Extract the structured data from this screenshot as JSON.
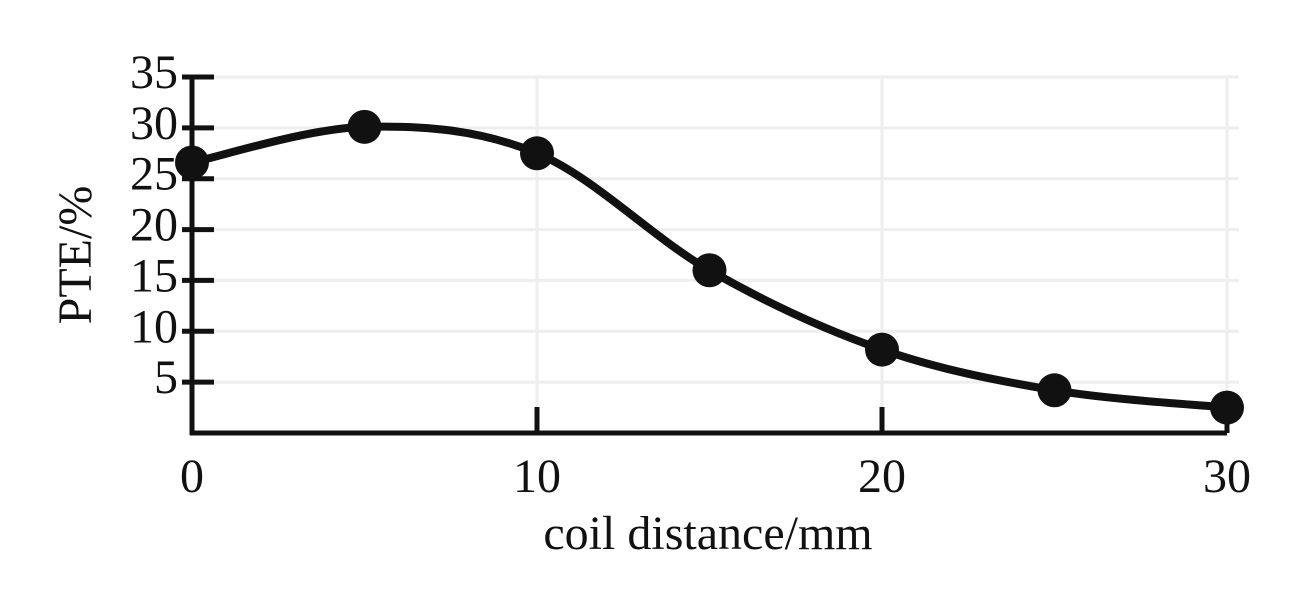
{
  "chart_data": {
    "type": "line",
    "x": [
      0,
      5,
      10,
      15,
      20,
      25,
      30
    ],
    "values": [
      26.6,
      30.1,
      27.5,
      16.0,
      8.2,
      4.2,
      2.5
    ],
    "color": "#111111",
    "xlabel": "coil distance/mm",
    "ylabel": "PTE/%",
    "xlim": [
      0,
      30
    ],
    "xticks": [
      0,
      10,
      20,
      30
    ],
    "ylim": [
      0,
      35
    ],
    "yticks": [
      5,
      10,
      15,
      20,
      25,
      30,
      35
    ],
    "grid": true
  }
}
